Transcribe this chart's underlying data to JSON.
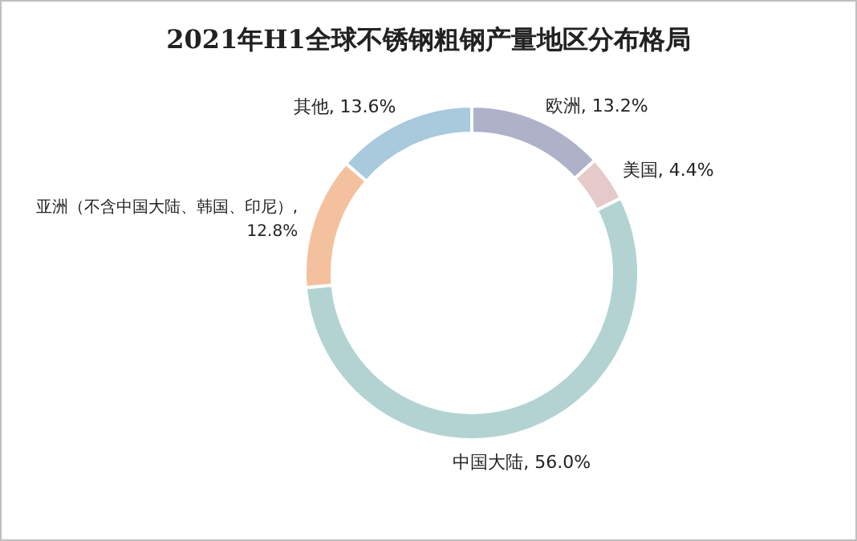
{
  "chart_data": {
    "type": "donut",
    "title": "2021年H1全球不锈钢粗钢产量地区分布格局",
    "categories": [
      "欧洲",
      "美国",
      "中国大陆",
      "亚洲（不含中国大陆、韩国、印尼）",
      "其他"
    ],
    "values": [
      13.2,
      4.4,
      56.0,
      12.8,
      13.6
    ],
    "value_labels": [
      ", 13.2%",
      ", 4.4%",
      ", 56.0%",
      ", 12.8%",
      ", 13.6%"
    ],
    "colors": [
      "#afb1c9",
      "#e6c9c9",
      "#b3d3d3",
      "#f4c19e",
      "#a9c9dd"
    ]
  }
}
